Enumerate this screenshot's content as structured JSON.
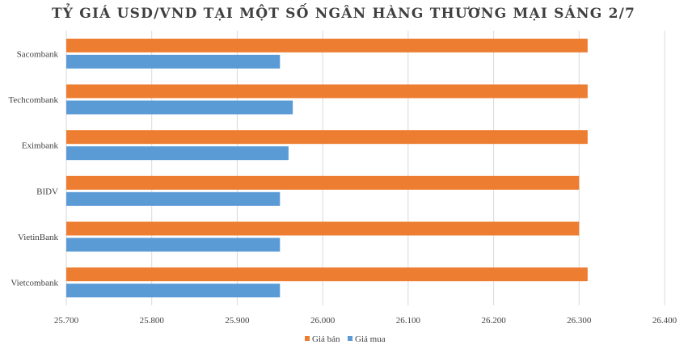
{
  "chart_data": {
    "type": "bar",
    "orientation": "horizontal",
    "title": "TỶ GIÁ USD/VND TẠI MỘT SỐ NGÂN HÀNG THƯƠNG MẠI SÁNG 2/7",
    "categories": [
      "Sacombank",
      "Techcombank",
      "Eximbank",
      "BIDV",
      "VietinBank",
      "Vietcombank"
    ],
    "series": [
      {
        "name": "Giá bán",
        "color": "#ED7D31",
        "values": [
          26310,
          26310,
          26310,
          26300,
          26300,
          26310
        ]
      },
      {
        "name": "Giá mua",
        "color": "#5B9BD5",
        "values": [
          25950,
          25965,
          25960,
          25950,
          25950,
          25950
        ]
      }
    ],
    "xlim": [
      25700,
      26400
    ],
    "ticks": [
      25700,
      25800,
      25900,
      26000,
      26100,
      26200,
      26300,
      26400
    ],
    "tick_labels": [
      "25.700",
      "25.800",
      "25.900",
      "26.000",
      "26.100",
      "26.200",
      "26.300",
      "26.400"
    ],
    "grid": true,
    "legend_position": "bottom"
  }
}
